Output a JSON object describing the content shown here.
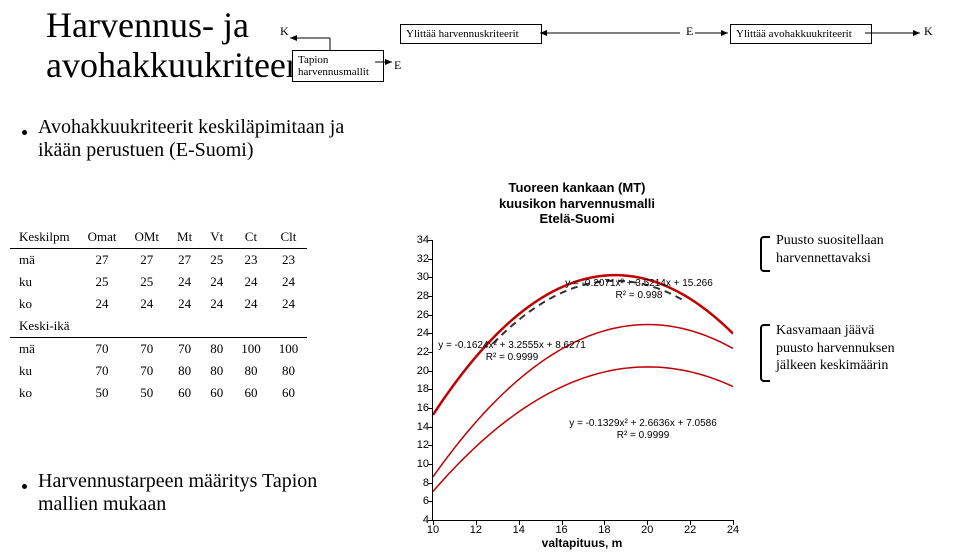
{
  "title_l1": "Harvennus- ja",
  "title_l2": "avohakkuukriteerit",
  "flow": {
    "k": "K",
    "e": "E",
    "box1_l1": "Tapion",
    "box1_l2": "harvennusmallit",
    "box2": "Ylittää harvennuskriteerit",
    "box3": "Ylittää avohakkuukriteerit"
  },
  "bullet1_l1": "Avohakkuukriteerit keskiläpimitaan ja",
  "bullet1_l2": "ikään perustuen (E-Suomi)",
  "bullet2_l1": "Harvennustarpeen määritys Tapion",
  "bullet2_l2": "mallien mukaan",
  "table": {
    "headers": [
      "Keskilpm",
      "Omat",
      "OMt",
      "Mt",
      "Vt",
      "Ct",
      "Clt"
    ],
    "group1": [
      [
        "mä",
        "27",
        "27",
        "27",
        "25",
        "23",
        "23"
      ],
      [
        "ku",
        "25",
        "25",
        "24",
        "24",
        "24",
        "24"
      ],
      [
        "ko",
        "24",
        "24",
        "24",
        "24",
        "24",
        "24"
      ]
    ],
    "mid": "Keski-ikä",
    "group2": [
      [
        "mä",
        "70",
        "70",
        "70",
        "80",
        "100",
        "100"
      ],
      [
        "ku",
        "70",
        "70",
        "80",
        "80",
        "80",
        "80"
      ],
      [
        "ko",
        "50",
        "50",
        "60",
        "60",
        "60",
        "60"
      ]
    ]
  },
  "chart": {
    "title_l1": "Tuoreen kankaan (MT)",
    "title_l2": "kuusikon harvennusmalli",
    "title_l3": "Etelä-Suomi",
    "xlabel": "valtapituus, m",
    "ymin": 4,
    "ymax": 34,
    "ystep": 2,
    "xmin": 10,
    "xmax": 24,
    "xstep": 2,
    "curves": [
      {
        "color": "#c00000",
        "a": -0.2071,
        "b": 3.5214,
        "c": 15.266,
        "thick": 2.5
      },
      {
        "color": "#c00000",
        "a": -0.1624,
        "b": 3.2555,
        "c": 8.6271,
        "thick": 1.5
      },
      {
        "color": "#c00000",
        "a": -0.1329,
        "b": 2.6636,
        "c": 7.0586,
        "thick": 1.5
      }
    ],
    "eq1_l1": "y = -0.2071x² + 3.5214x + 15.266",
    "eq1_l2": "R² = 0.998",
    "eq2_l1": "y = -0.1624x² + 3.2555x + 8.6271",
    "eq2_l2": "R² = 0.9999",
    "eq3_l1": "y = -0.1329x² + 2.6636x + 7.0586",
    "eq3_l2": "R² = 0.9999"
  },
  "anno1_l1": "Puusto suositellaan",
  "anno1_l2": "harvennettavaksi",
  "anno2_l1": "Kasvamaan jäävä",
  "anno2_l2": "puusto harvennuksen",
  "anno2_l3": "jälkeen keskimäärin"
}
